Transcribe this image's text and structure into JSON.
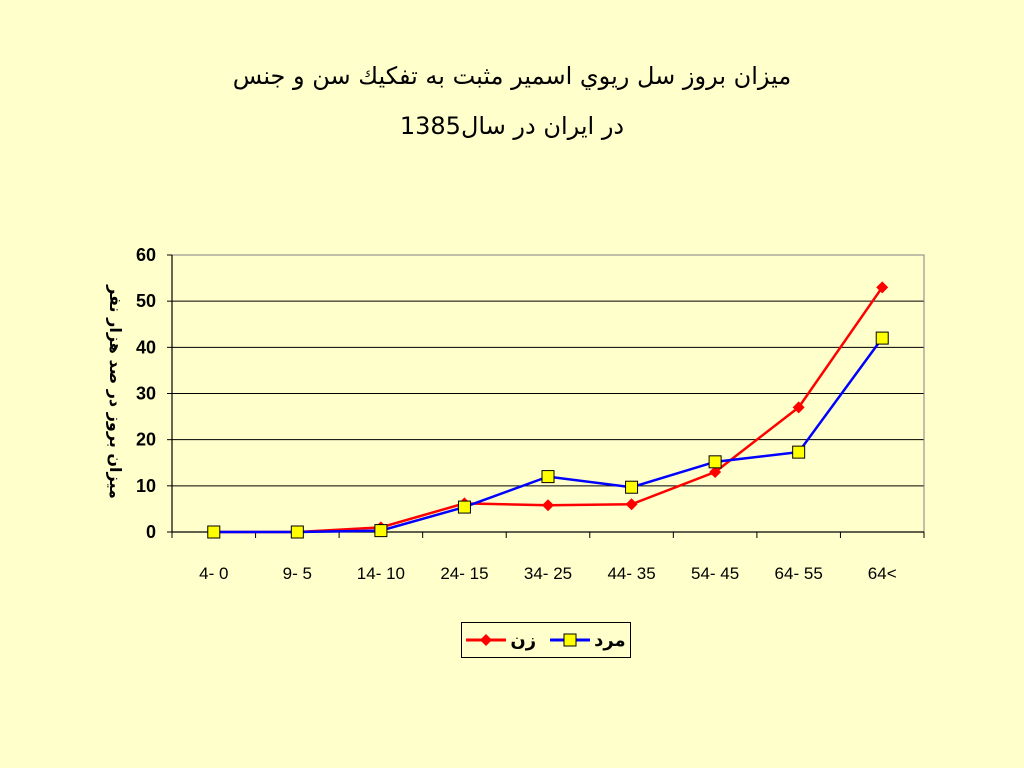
{
  "title_line1": "ميزان بروز سل ريوي اسمير مثبت به تفكيك سن و جنس",
  "title_line2": "در ايران در سال1385",
  "chart_data": {
    "type": "line",
    "categories": [
      "0 -4",
      "5 -9",
      "10 -14",
      "15 -24",
      "25 -34",
      "35 -44",
      "45 -54",
      "55 -64",
      ">64"
    ],
    "series": [
      {
        "name": "زن",
        "color": "#FF0000",
        "marker": "diamond",
        "values": [
          0,
          0,
          1,
          6.2,
          5.8,
          6,
          13,
          27,
          53
        ]
      },
      {
        "name": "مرد",
        "color": "#0000FF",
        "marker": "square",
        "values": [
          0,
          0,
          0.3,
          5.4,
          12,
          9.7,
          15.2,
          17.3,
          42
        ]
      }
    ],
    "ylabel": "ميزان بروز در صد هزار نفر",
    "ylim": [
      0,
      60
    ],
    "yticks": [
      0,
      10,
      20,
      30,
      40,
      50,
      60
    ],
    "grid": true,
    "legend": "bottom"
  }
}
